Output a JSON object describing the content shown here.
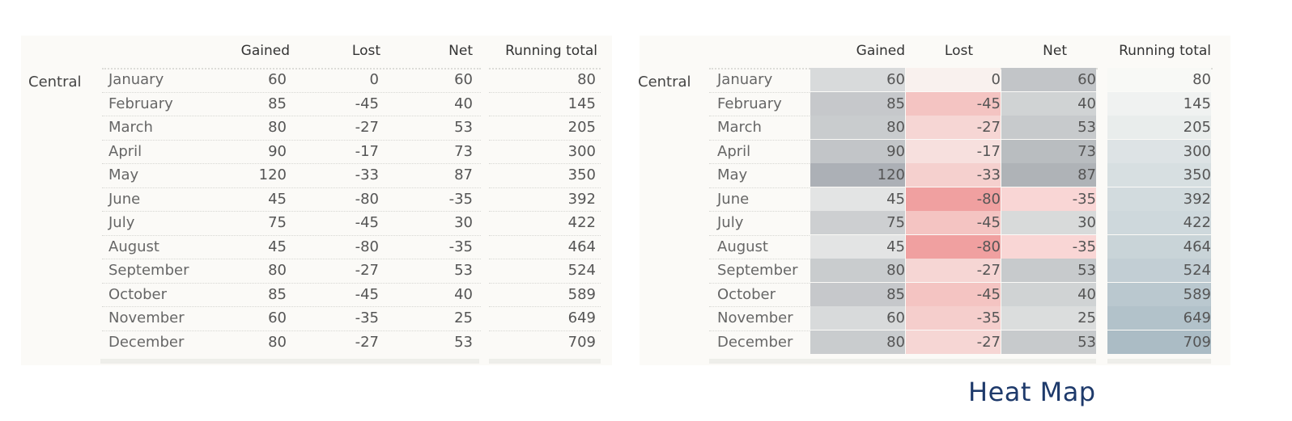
{
  "columns": {
    "gained": "Gained",
    "lost": "Lost",
    "net": "Net",
    "running_total": "Running total"
  },
  "region": "Central",
  "caption": "Heat Map",
  "colors": {
    "gained_scale": "#9ea3aa",
    "lost_scale": "#ee8a8a",
    "net_pos_scale": "#a2a7ac",
    "net_neg_scale": "#f7b2b2",
    "running_scale": "#9fb3be"
  },
  "chart_data": {
    "type": "table",
    "columns": [
      "Gained",
      "Lost",
      "Net",
      "Running total"
    ],
    "rows": [
      {
        "month": "January",
        "gained": "60",
        "lost": "0",
        "net": "60",
        "running": "80"
      },
      {
        "month": "February",
        "gained": "85",
        "lost": "-45",
        "net": "40",
        "running": "145"
      },
      {
        "month": "March",
        "gained": "80",
        "lost": "-27",
        "net": "53",
        "running": "205"
      },
      {
        "month": "April",
        "gained": "90",
        "lost": "-17",
        "net": "73",
        "running": "300"
      },
      {
        "month": "May",
        "gained": "120",
        "lost": "-33",
        "net": "87",
        "running": "350"
      },
      {
        "month": "June",
        "gained": "45",
        "lost": "-80",
        "net": "-35",
        "running": "392"
      },
      {
        "month": "July",
        "gained": "75",
        "lost": "-45",
        "net": "30",
        "running": "422"
      },
      {
        "month": "August",
        "gained": "45",
        "lost": "-80",
        "net": "-35",
        "running": "464"
      },
      {
        "month": "September",
        "gained": "80",
        "lost": "-27",
        "net": "53",
        "running": "524"
      },
      {
        "month": "October",
        "gained": "85",
        "lost": "-45",
        "net": "40",
        "running": "589"
      },
      {
        "month": "November",
        "gained": "60",
        "lost": "-35",
        "net": "25",
        "running": "649"
      },
      {
        "month": "December",
        "gained": "80",
        "lost": "-27",
        "net": "53",
        "running": "709"
      }
    ]
  }
}
